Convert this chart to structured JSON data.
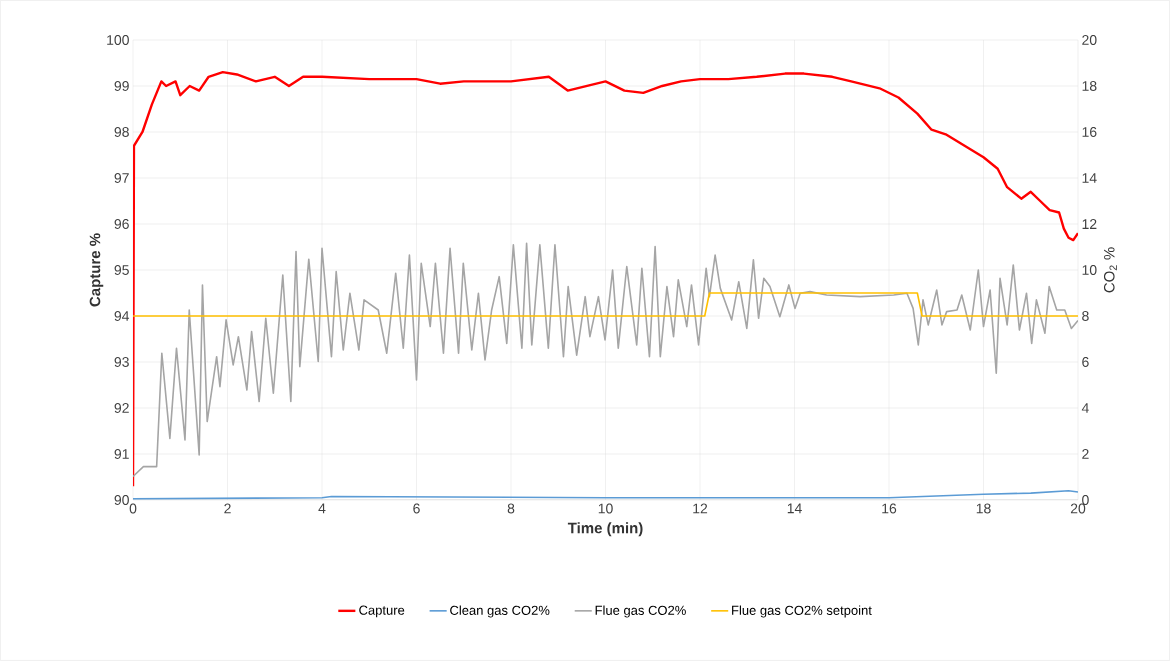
{
  "chart_data": {
    "type": "line",
    "xlabel": "Time (min)",
    "ylabel": "Capture %",
    "y2label": "CO$_{2}$ %",
    "xlim": [
      0,
      20
    ],
    "xticks": [
      0,
      2,
      4,
      6,
      8,
      10,
      12,
      14,
      16,
      18,
      20
    ],
    "ylim": [
      90,
      100
    ],
    "yticks": [
      90,
      91,
      92,
      93,
      94,
      95,
      96,
      97,
      98,
      99,
      100
    ],
    "y2lim": [
      0,
      20
    ],
    "y2ticks": [
      0,
      2,
      4,
      6,
      8,
      10,
      12,
      14,
      16,
      18,
      20
    ],
    "grid": true,
    "legend": "bottom",
    "series": [
      {
        "name": "Capture",
        "color": "#ff0000",
        "x": [
          0,
          0.02,
          0.2,
          0.4,
          0.6,
          0.7,
          0.9,
          1.0,
          1.2,
          1.4,
          1.6,
          1.9,
          2.2,
          2.6,
          3.0,
          3.3,
          3.6,
          4,
          5,
          6,
          6.5,
          7,
          8,
          8.8,
          9.2,
          9.6,
          10,
          10.4,
          10.8,
          11.2,
          11.6,
          12,
          12.6,
          13.2,
          13.8,
          14.2,
          14.8,
          15.2,
          15.8,
          16.2,
          16.6,
          16.9,
          17.2,
          17.6,
          18.0,
          18.3,
          18.5,
          18.8,
          19.0,
          19.2,
          19.4,
          19.6,
          19.7,
          19.8,
          19.9,
          20
        ],
        "values": [
          90.3,
          97.7,
          98.0,
          98.6,
          99.1,
          99.0,
          99.1,
          98.8,
          99.0,
          98.9,
          99.2,
          99.3,
          99.25,
          99.1,
          99.2,
          99.0,
          99.2,
          99.2,
          99.15,
          99.15,
          99.05,
          99.1,
          99.1,
          99.2,
          98.9,
          99.0,
          99.1,
          98.9,
          98.85,
          99.0,
          99.1,
          99.15,
          99.15,
          99.2,
          99.27,
          99.27,
          99.2,
          99.1,
          98.95,
          98.75,
          98.4,
          98.05,
          97.95,
          97.7,
          97.45,
          97.2,
          96.8,
          96.55,
          96.7,
          96.5,
          96.3,
          96.25,
          95.9,
          95.7,
          95.65,
          95.8
        ]
      },
      {
        "name": "Clean gas CO2%",
        "color": "#5b9bd5",
        "axis": "y2",
        "x": [
          0,
          4,
          4.2,
          10,
          16,
          18,
          19,
          19.8,
          20
        ],
        "values": [
          0.05,
          0.1,
          0.15,
          0.1,
          0.1,
          0.25,
          0.3,
          0.4,
          0.35
        ]
      },
      {
        "name": "Flue gas CO2%",
        "color": "#a5a5a5",
        "axis": "y2",
        "x": [
          0,
          0.22,
          0.5,
          0.61,
          0.78,
          0.92,
          1.1,
          1.19,
          1.4,
          1.47,
          1.57,
          1.77,
          1.84,
          1.97,
          2.12,
          2.23,
          2.41,
          2.51,
          2.67,
          2.81,
          2.97,
          3.17,
          3.34,
          3.45,
          3.53,
          3.72,
          3.92,
          4.0,
          4.2,
          4.3,
          4.45,
          4.59,
          4.78,
          4.89,
          5.19,
          5.37,
          5.56,
          5.72,
          5.85,
          6.0,
          6.1,
          6.29,
          6.4,
          6.57,
          6.71,
          6.89,
          6.99,
          7.17,
          7.31,
          7.45,
          7.59,
          7.75,
          7.91,
          8.05,
          8.23,
          8.33,
          8.44,
          8.61,
          8.79,
          8.93,
          9.11,
          9.21,
          9.39,
          9.57,
          9.67,
          9.85,
          9.99,
          10.15,
          10.27,
          10.45,
          10.66,
          10.77,
          10.93,
          11.05,
          11.16,
          11.3,
          11.44,
          11.54,
          11.72,
          11.82,
          11.97,
          12.13,
          12.2,
          12.32,
          12.43,
          12.67,
          12.82,
          12.99,
          13.13,
          13.24,
          13.35,
          13.48,
          13.69,
          13.88,
          14.01,
          14.12,
          14.33,
          14.68,
          15.39,
          16.1,
          16.38,
          16.51,
          16.62,
          16.72,
          16.83,
          17.01,
          17.12,
          17.22,
          17.44,
          17.54,
          17.72,
          17.89,
          18.0,
          18.14,
          18.27,
          18.35,
          18.5,
          18.63,
          18.76,
          18.91,
          19.02,
          19.12,
          19.3,
          19.39,
          19.55,
          19.72,
          19.86,
          20
        ],
        "values": [
          1.02,
          1.45,
          1.45,
          6.38,
          2.68,
          6.6,
          2.61,
          8.26,
          1.96,
          9.35,
          3.41,
          6.23,
          4.93,
          7.83,
          5.87,
          7.1,
          4.78,
          7.32,
          4.28,
          7.9,
          4.64,
          9.78,
          4.28,
          10.8,
          5.8,
          10.47,
          6.02,
          10.94,
          6.23,
          9.93,
          6.52,
          8.99,
          6.52,
          8.7,
          8.26,
          6.38,
          9.86,
          6.6,
          10.65,
          5.22,
          10.29,
          7.54,
          10.29,
          6.38,
          10.94,
          6.38,
          10.29,
          6.52,
          8.99,
          6.09,
          8.26,
          9.71,
          6.81,
          11.09,
          6.6,
          11.16,
          6.74,
          11.09,
          6.6,
          11.09,
          6.23,
          9.28,
          6.3,
          8.84,
          7.1,
          8.84,
          6.96,
          10.0,
          6.6,
          10.15,
          6.74,
          10.07,
          6.23,
          11.02,
          6.23,
          9.28,
          7.1,
          9.57,
          7.54,
          9.35,
          6.74,
          10.07,
          8.84,
          10.65,
          9.2,
          7.83,
          9.49,
          7.46,
          10.44,
          7.9,
          9.64,
          9.28,
          7.97,
          9.35,
          8.33,
          8.99,
          9.06,
          8.91,
          8.84,
          8.91,
          8.99,
          8.33,
          6.74,
          8.7,
          7.61,
          9.13,
          7.61,
          8.19,
          8.26,
          8.91,
          7.39,
          10.0,
          7.54,
          9.13,
          5.51,
          9.64,
          7.61,
          10.22,
          7.39,
          8.99,
          6.81,
          8.7,
          7.25,
          9.28,
          8.26,
          8.26,
          7.46,
          7.8
        ]
      },
      {
        "name": "Flue gas CO2% setpoint",
        "color": "#ffc000",
        "axis": "y2",
        "x": [
          0,
          12.1,
          12.2,
          16.6,
          16.7,
          20
        ],
        "values": [
          8,
          8,
          9,
          9,
          8,
          8
        ]
      }
    ]
  }
}
